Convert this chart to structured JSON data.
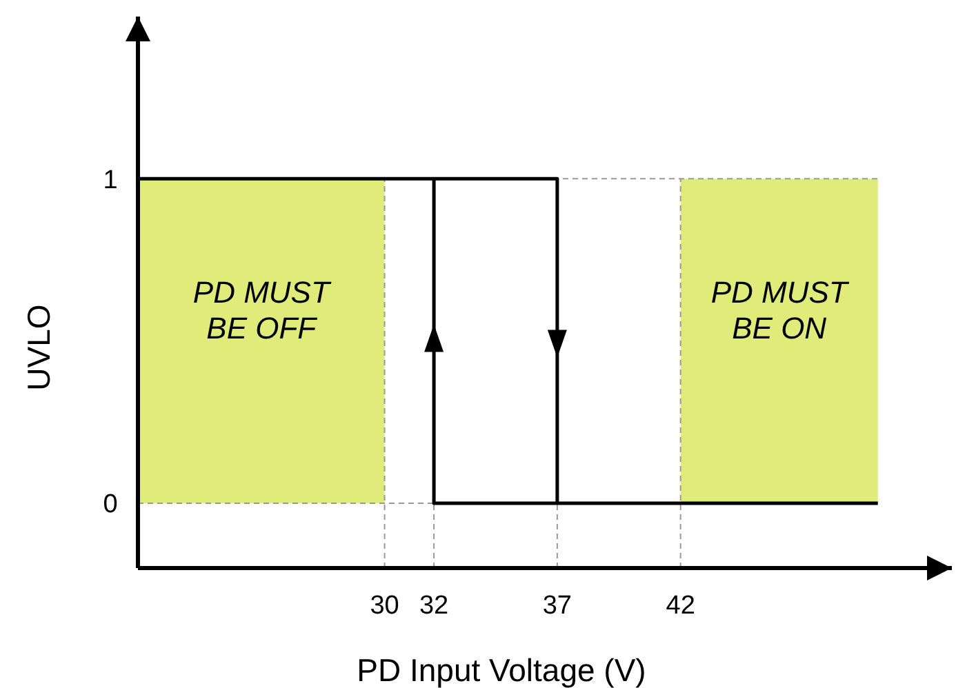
{
  "chart_data": {
    "type": "line",
    "xlabel": "PD Input Voltage (V)",
    "ylabel": "UVLO",
    "xlim": [
      20,
      53
    ],
    "ylim": [
      -0.2,
      1.5
    ],
    "xticks": [
      30,
      32,
      37,
      42
    ],
    "yticks": [
      0,
      1
    ],
    "grid": true,
    "marker": "none",
    "line_style": "solid",
    "color": "#000000",
    "series": [
      {
        "x": [
          20,
          37,
          37
        ],
        "values": [
          1,
          1,
          0
        ]
      },
      {
        "x": [
          50,
          32,
          32
        ],
        "values": [
          0,
          0,
          1
        ]
      }
    ],
    "bands": [
      {
        "axis": "x",
        "from": 20,
        "to": 30,
        "label": "PD MUST\nBE OFF",
        "color": "#dfec7a"
      },
      {
        "axis": "x",
        "from": 42,
        "to": 50,
        "label": "PD MUST\nBE ON",
        "color": "#dfec7a"
      }
    ]
  }
}
